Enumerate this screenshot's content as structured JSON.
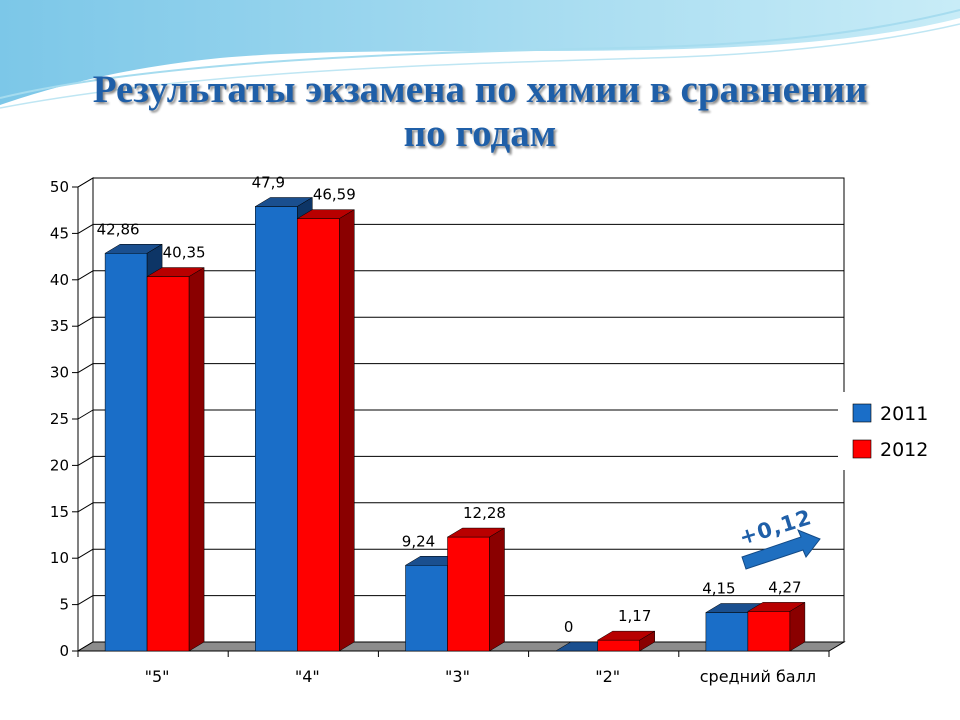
{
  "title": {
    "line1": "Результаты экзамена по химии в сравнении",
    "line2": "по годам"
  },
  "colors": {
    "series_2011": "#1a6ec8",
    "series_2012": "#ff0000",
    "title": "#1f5fa8"
  },
  "chart_data": {
    "type": "bar",
    "title": "Результаты экзамена по химии в сравнении по годам",
    "categories": [
      "\"5\"",
      "\"4\"",
      "\"3\"",
      "\"2\"",
      "средний балл"
    ],
    "series": [
      {
        "name": "2011",
        "values": [
          42.86,
          47.9,
          9.24,
          0,
          4.15
        ],
        "labels": [
          "42,86",
          "47,9",
          "9,24",
          "0",
          "4,15"
        ]
      },
      {
        "name": "2012",
        "values": [
          40.35,
          46.59,
          12.28,
          1.17,
          4.27
        ],
        "labels": [
          "40,35",
          "46,59",
          "12,28",
          "1,17",
          "4,27"
        ]
      }
    ],
    "ylim": [
      0,
      50
    ],
    "yticks": [
      "0",
      "5",
      "10",
      "15",
      "20",
      "25",
      "30",
      "35",
      "40",
      "45",
      "50"
    ],
    "grid": true,
    "legend": "right",
    "annotation": "+0,12"
  }
}
